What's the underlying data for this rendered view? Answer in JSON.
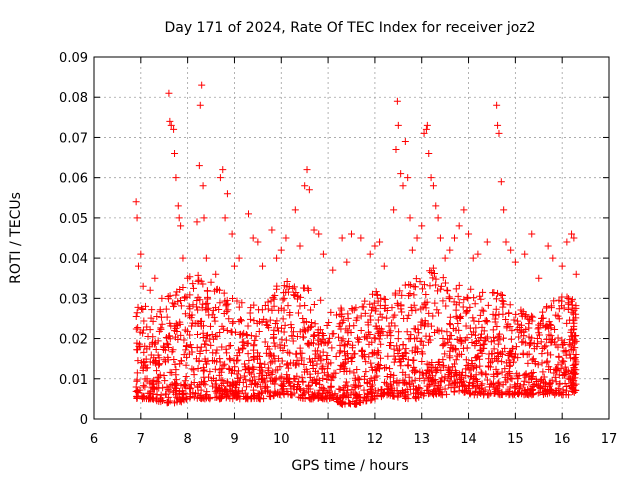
{
  "chart_data": {
    "type": "scatter",
    "title": "Day 171 of 2024, Rate Of TEC Index for receiver joz2",
    "xlabel": "GPS time / hours",
    "ylabel": "ROTI / TECUs",
    "xlim": [
      6,
      17
    ],
    "ylim": [
      0,
      0.09
    ],
    "x_ticks": [
      "6",
      "7",
      "8",
      "9",
      "10",
      "11",
      "12",
      "13",
      "14",
      "15",
      "16",
      "17"
    ],
    "y_ticks": [
      "0",
      "0.01",
      "0.02",
      "0.03",
      "0.04",
      "0.05",
      "0.06",
      "0.07",
      "0.08",
      "0.09"
    ],
    "grid": true,
    "marker": "+",
    "color": "#ff0000",
    "series": [
      {
        "name": "ROTI",
        "points": [
          [
            6.9,
            0.054
          ],
          [
            6.92,
            0.05
          ],
          [
            6.95,
            0.038
          ],
          [
            7.0,
            0.041
          ],
          [
            7.05,
            0.033
          ],
          [
            7.1,
            0.028
          ],
          [
            7.2,
            0.032
          ],
          [
            7.3,
            0.035
          ],
          [
            7.45,
            0.03
          ],
          [
            7.6,
            0.081
          ],
          [
            7.62,
            0.074
          ],
          [
            7.65,
            0.073
          ],
          [
            7.7,
            0.072
          ],
          [
            7.72,
            0.066
          ],
          [
            7.75,
            0.06
          ],
          [
            7.8,
            0.053
          ],
          [
            7.82,
            0.05
          ],
          [
            7.85,
            0.048
          ],
          [
            7.9,
            0.04
          ],
          [
            8.0,
            0.035
          ],
          [
            8.2,
            0.049
          ],
          [
            8.25,
            0.063
          ],
          [
            8.27,
            0.078
          ],
          [
            8.3,
            0.083
          ],
          [
            8.33,
            0.058
          ],
          [
            8.35,
            0.05
          ],
          [
            8.4,
            0.04
          ],
          [
            8.5,
            0.034
          ],
          [
            8.6,
            0.036
          ],
          [
            8.7,
            0.06
          ],
          [
            8.75,
            0.062
          ],
          [
            8.8,
            0.05
          ],
          [
            8.85,
            0.056
          ],
          [
            8.95,
            0.046
          ],
          [
            9.0,
            0.038
          ],
          [
            9.1,
            0.04
          ],
          [
            9.3,
            0.051
          ],
          [
            9.4,
            0.045
          ],
          [
            9.5,
            0.044
          ],
          [
            9.6,
            0.038
          ],
          [
            9.8,
            0.047
          ],
          [
            9.9,
            0.04
          ],
          [
            10.0,
            0.042
          ],
          [
            10.1,
            0.045
          ],
          [
            10.3,
            0.052
          ],
          [
            10.4,
            0.043
          ],
          [
            10.5,
            0.058
          ],
          [
            10.55,
            0.062
          ],
          [
            10.6,
            0.057
          ],
          [
            10.7,
            0.047
          ],
          [
            10.8,
            0.046
          ],
          [
            10.9,
            0.041
          ],
          [
            11.1,
            0.037
          ],
          [
            11.3,
            0.045
          ],
          [
            11.4,
            0.039
          ],
          [
            11.5,
            0.046
          ],
          [
            11.7,
            0.045
          ],
          [
            11.9,
            0.041
          ],
          [
            12.0,
            0.043
          ],
          [
            12.1,
            0.044
          ],
          [
            12.2,
            0.038
          ],
          [
            12.4,
            0.052
          ],
          [
            12.45,
            0.067
          ],
          [
            12.48,
            0.079
          ],
          [
            12.5,
            0.073
          ],
          [
            12.55,
            0.061
          ],
          [
            12.6,
            0.058
          ],
          [
            12.65,
            0.069
          ],
          [
            12.7,
            0.06
          ],
          [
            12.75,
            0.05
          ],
          [
            12.8,
            0.042
          ],
          [
            12.9,
            0.045
          ],
          [
            13.0,
            0.048
          ],
          [
            13.05,
            0.071
          ],
          [
            13.1,
            0.072
          ],
          [
            13.12,
            0.073
          ],
          [
            13.15,
            0.066
          ],
          [
            13.2,
            0.06
          ],
          [
            13.25,
            0.058
          ],
          [
            13.3,
            0.053
          ],
          [
            13.35,
            0.05
          ],
          [
            13.4,
            0.045
          ],
          [
            13.5,
            0.04
          ],
          [
            13.6,
            0.042
          ],
          [
            13.7,
            0.045
          ],
          [
            13.8,
            0.048
          ],
          [
            13.9,
            0.052
          ],
          [
            14.0,
            0.046
          ],
          [
            14.1,
            0.04
          ],
          [
            14.2,
            0.041
          ],
          [
            14.4,
            0.044
          ],
          [
            14.6,
            0.078
          ],
          [
            14.62,
            0.073
          ],
          [
            14.65,
            0.071
          ],
          [
            14.7,
            0.059
          ],
          [
            14.75,
            0.052
          ],
          [
            14.8,
            0.044
          ],
          [
            14.9,
            0.042
          ],
          [
            15.0,
            0.039
          ],
          [
            15.2,
            0.041
          ],
          [
            15.35,
            0.046
          ],
          [
            15.5,
            0.035
          ],
          [
            15.7,
            0.043
          ],
          [
            15.8,
            0.04
          ],
          [
            16.0,
            0.038
          ],
          [
            16.1,
            0.044
          ],
          [
            16.2,
            0.046
          ],
          [
            16.25,
            0.045
          ],
          [
            16.3,
            0.036
          ]
        ],
        "envelope": [
          [
            6.9,
            0.005,
            0.03
          ],
          [
            7.2,
            0.005,
            0.028
          ],
          [
            7.5,
            0.004,
            0.03
          ],
          [
            7.8,
            0.004,
            0.032
          ],
          [
            8.1,
            0.005,
            0.038
          ],
          [
            8.4,
            0.005,
            0.035
          ],
          [
            8.7,
            0.005,
            0.033
          ],
          [
            9.0,
            0.005,
            0.03
          ],
          [
            9.3,
            0.005,
            0.028
          ],
          [
            9.6,
            0.005,
            0.03
          ],
          [
            9.9,
            0.006,
            0.033
          ],
          [
            10.2,
            0.006,
            0.036
          ],
          [
            10.5,
            0.005,
            0.034
          ],
          [
            10.8,
            0.005,
            0.03
          ],
          [
            11.1,
            0.005,
            0.028
          ],
          [
            11.4,
            0.003,
            0.028
          ],
          [
            11.7,
            0.004,
            0.029
          ],
          [
            12.0,
            0.005,
            0.032
          ],
          [
            12.3,
            0.006,
            0.03
          ],
          [
            12.6,
            0.005,
            0.034
          ],
          [
            12.9,
            0.005,
            0.036
          ],
          [
            13.2,
            0.006,
            0.038
          ],
          [
            13.5,
            0.006,
            0.036
          ],
          [
            13.8,
            0.007,
            0.034
          ],
          [
            14.1,
            0.006,
            0.033
          ],
          [
            14.4,
            0.006,
            0.032
          ],
          [
            14.7,
            0.006,
            0.031
          ],
          [
            15.0,
            0.006,
            0.028
          ],
          [
            15.3,
            0.006,
            0.027
          ],
          [
            15.6,
            0.006,
            0.028
          ],
          [
            15.9,
            0.006,
            0.03
          ],
          [
            16.2,
            0.006,
            0.032
          ],
          [
            16.3,
            0.007,
            0.03
          ]
        ]
      }
    ]
  }
}
